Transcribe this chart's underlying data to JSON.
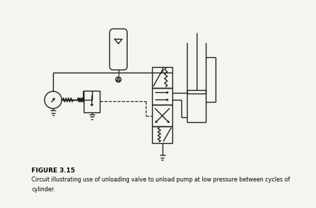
{
  "title": "FIGURE 3.15",
  "caption_line1": "Circuit illustrating use of unloading valve to unload pump at low pressure between cycles of",
  "caption_line2": "cylinder.",
  "bg_color": "#f5f4f0",
  "line_color": "#1a1a1a",
  "figsize": [
    4.53,
    2.98
  ],
  "dpi": 100
}
